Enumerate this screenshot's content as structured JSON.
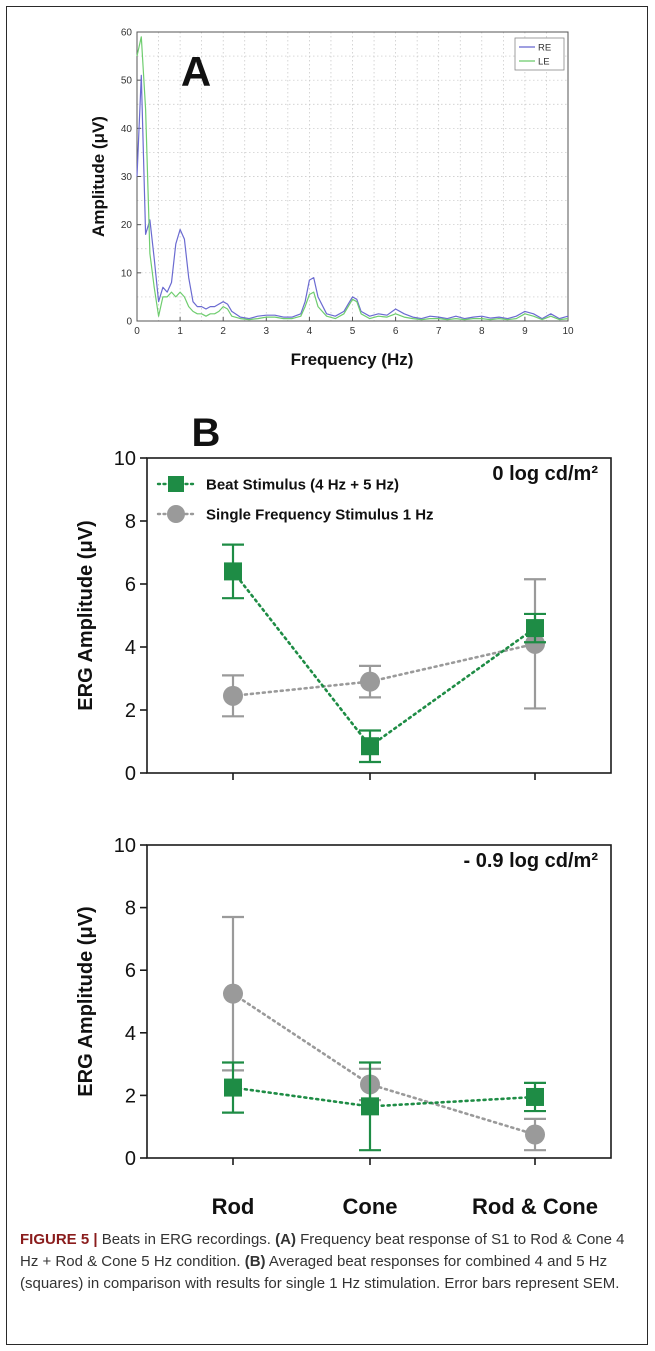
{
  "colors": {
    "re": "#6b6bd1",
    "le": "#6fcd6f",
    "beat": "#1e8c45",
    "single": "#9a9a9a",
    "caption_lead": "#8a1c1c"
  },
  "chart_data": [
    {
      "panel_label": "A",
      "type": "line",
      "xlabel": "Frequency (Hz)",
      "ylabel": "Amplitude (μV)",
      "xlim": [
        0,
        10
      ],
      "ylim": [
        0,
        60
      ],
      "xticks": [
        "0",
        "1",
        "2",
        "3",
        "4",
        "5",
        "6",
        "7",
        "8",
        "9",
        "10"
      ],
      "yticks": [
        "0",
        "10",
        "20",
        "30",
        "40",
        "50",
        "60"
      ],
      "grid": true,
      "legend_position": "top-right",
      "legend": [
        "RE",
        "LE"
      ],
      "series": [
        {
          "name": "RE",
          "color": "#6b6bd1",
          "x": [
            0,
            0.1,
            0.2,
            0.3,
            0.4,
            0.5,
            0.6,
            0.7,
            0.8,
            0.9,
            1.0,
            1.1,
            1.2,
            1.3,
            1.4,
            1.5,
            1.6,
            1.7,
            1.8,
            1.9,
            2.0,
            2.1,
            2.2,
            2.4,
            2.6,
            2.8,
            3.0,
            3.2,
            3.4,
            3.6,
            3.8,
            3.9,
            4.0,
            4.1,
            4.2,
            4.4,
            4.6,
            4.8,
            4.9,
            5.0,
            5.1,
            5.2,
            5.4,
            5.6,
            5.8,
            6.0,
            6.2,
            6.4,
            6.6,
            6.8,
            7.0,
            7.2,
            7.4,
            7.6,
            7.8,
            8.0,
            8.2,
            8.4,
            8.6,
            8.8,
            9.0,
            9.2,
            9.4,
            9.6,
            9.8,
            10.0
          ],
          "values": [
            30,
            51,
            18,
            21,
            13,
            4,
            7,
            6,
            8,
            16,
            19,
            17,
            9,
            4,
            3,
            3,
            2.5,
            3,
            3,
            3.5,
            4,
            3.5,
            2,
            0.8,
            0.5,
            1,
            1.2,
            1.2,
            0.8,
            0.8,
            1.5,
            4,
            8.5,
            9,
            5,
            1.5,
            1,
            2,
            3.5,
            5,
            4.5,
            2,
            1,
            1.5,
            1.2,
            2.5,
            1.5,
            0.8,
            0.5,
            1,
            0.8,
            0.5,
            1,
            0.5,
            0.8,
            1,
            0.6,
            0.8,
            0.5,
            1,
            2,
            1.5,
            0.5,
            1.5,
            0.5,
            1
          ]
        },
        {
          "name": "LE",
          "color": "#6fcd6f",
          "x": [
            0,
            0.1,
            0.2,
            0.3,
            0.4,
            0.5,
            0.6,
            0.7,
            0.8,
            0.9,
            1.0,
            1.1,
            1.2,
            1.3,
            1.4,
            1.5,
            1.6,
            1.7,
            1.8,
            1.9,
            2.0,
            2.1,
            2.2,
            2.4,
            2.6,
            2.8,
            3.0,
            3.2,
            3.4,
            3.6,
            3.8,
            3.9,
            4.0,
            4.1,
            4.2,
            4.4,
            4.6,
            4.8,
            4.9,
            5.0,
            5.1,
            5.2,
            5.4,
            5.6,
            5.8,
            6.0,
            6.2,
            6.4,
            6.6,
            6.8,
            7.0,
            7.2,
            7.4,
            7.6,
            7.8,
            8.0,
            8.2,
            8.4,
            8.6,
            8.8,
            9.0,
            9.2,
            9.4,
            9.6,
            9.8,
            10.0
          ],
          "values": [
            55,
            59,
            44,
            14,
            7,
            1,
            5,
            5,
            6,
            5,
            6,
            5,
            3,
            2,
            1.5,
            1.5,
            1,
            1.5,
            1.5,
            2,
            3,
            2.5,
            1,
            0.5,
            0.3,
            0.5,
            0.8,
            0.8,
            0.5,
            0.5,
            1,
            3,
            5.5,
            6,
            3,
            1,
            0.5,
            1.5,
            3,
            4.5,
            4,
            1.5,
            0.5,
            1,
            0.8,
            1.5,
            0.8,
            0.5,
            0.3,
            0.5,
            0.5,
            0.3,
            0.5,
            0.3,
            0.5,
            0.5,
            0.3,
            0.5,
            0.3,
            0.5,
            1.5,
            1,
            0.3,
            1,
            0.3,
            0.5
          ]
        }
      ]
    },
    {
      "panel_label": "B",
      "type": "scatter",
      "title": "0 log cd/m²",
      "ylabel": "ERG Amplitude (μV)",
      "categories": [
        "Rod",
        "Cone",
        "Rod & Cone"
      ],
      "ylim": [
        0,
        10
      ],
      "yticks": [
        "0",
        "2",
        "4",
        "6",
        "8",
        "10"
      ],
      "legend_position": "top-left",
      "series": [
        {
          "name": "Beat Stimulus (4 Hz + 5 Hz)",
          "marker": "square",
          "color": "#1e8c45",
          "values": [
            6.4,
            0.85,
            4.6
          ],
          "errors": [
            0.85,
            0.5,
            0.45
          ]
        },
        {
          "name": "Single Frequency Stimulus 1 Hz",
          "marker": "circle",
          "color": "#9a9a9a",
          "values": [
            2.45,
            2.9,
            4.1
          ],
          "errors": [
            0.65,
            0.5,
            2.05
          ]
        }
      ]
    },
    {
      "type": "scatter",
      "title": "- 0.9 log cd/m²",
      "ylabel": "ERG Amplitude (μV)",
      "categories": [
        "Rod",
        "Cone",
        "Rod & Cone"
      ],
      "ylim": [
        0,
        10
      ],
      "yticks": [
        "0",
        "2",
        "4",
        "6",
        "8",
        "10"
      ],
      "series": [
        {
          "name": "Beat Stimulus (4 Hz + 5 Hz)",
          "marker": "square",
          "color": "#1e8c45",
          "values": [
            2.25,
            1.65,
            1.95
          ],
          "errors": [
            0.8,
            1.4,
            0.45
          ]
        },
        {
          "name": "Single Frequency Stimulus 1 Hz",
          "marker": "circle",
          "color": "#9a9a9a",
          "values": [
            5.25,
            2.35,
            0.75
          ],
          "errors": [
            2.45,
            0.5,
            0.5
          ]
        }
      ]
    }
  ],
  "caption": {
    "lead": "FIGURE 5 |",
    "text1": " Beats in ERG recordings. ",
    "a_label": "(A)",
    "text2": " Frequency beat response of S1 to Rod & Cone 4 Hz + Rod & Cone 5 Hz condition. ",
    "b_label": "(B)",
    "text3": " Averaged beat responses for combined 4 and 5 Hz (squares) in comparison with results for single 1 Hz stimulation. Error bars represent SEM."
  }
}
